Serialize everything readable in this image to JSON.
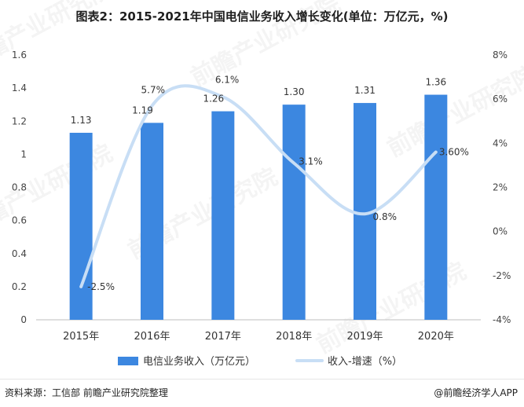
{
  "title": "图表2：2015-2021年中国电信业务收入增长变化(单位：万亿元，%)",
  "chart_data": {
    "type": "bar",
    "categories": [
      "2015年",
      "2016年",
      "2017年",
      "2018年",
      "2019年",
      "2020年"
    ],
    "series": [
      {
        "name": "电信业务收入（万亿元）",
        "type": "bar",
        "axis": "left",
        "values": [
          1.13,
          1.19,
          1.26,
          1.3,
          1.31,
          1.36
        ],
        "labels": [
          "1.13",
          "1.19",
          "1.26",
          "1.30",
          "1.31",
          "1.36"
        ],
        "color": "#3c87e0"
      },
      {
        "name": "收入-增速（%）",
        "type": "line",
        "axis": "right",
        "smooth": true,
        "values": [
          -2.5,
          5.7,
          6.1,
          3.1,
          0.8,
          3.6
        ],
        "labels": [
          "-2.5%",
          "5.7%",
          "6.1%",
          "3.1%",
          "0.8%",
          "3.60%"
        ],
        "color": "#c8def5"
      }
    ],
    "left_axis": {
      "ylim": [
        0,
        1.6
      ],
      "ticks": [
        "0",
        "0.2",
        "0.4",
        "0.6",
        "0.8",
        "1",
        "1.2",
        "1.4",
        "1.6"
      ]
    },
    "right_axis": {
      "ylim": [
        -4,
        8
      ],
      "ticks": [
        "-4%",
        "-2%",
        "0%",
        "2%",
        "4%",
        "6%",
        "8%"
      ]
    },
    "legend_position": "bottom",
    "grid": false
  },
  "footer": {
    "source": "资料来源：工信部 前瞻产业研究院整理",
    "credit": "@前瞻经济学人APP"
  },
  "watermark": "前瞻产业研究院"
}
